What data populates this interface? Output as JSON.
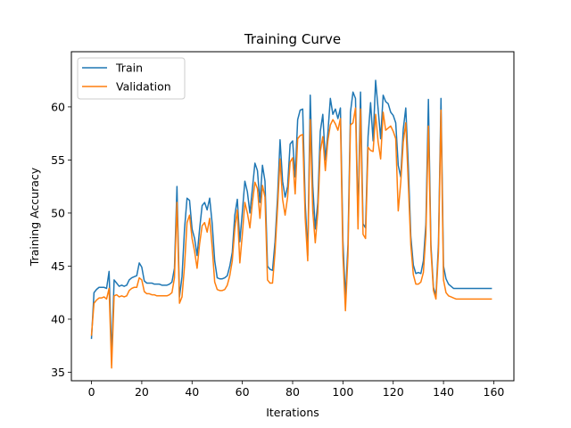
{
  "chart_data": {
    "type": "line",
    "title": "Training Curve",
    "xlabel": "Iterations",
    "ylabel": "Training Accuracy",
    "xlim": [
      -8,
      168
    ],
    "ylim": [
      34.2,
      65.2
    ],
    "xticks": [
      0,
      20,
      40,
      60,
      80,
      100,
      120,
      140,
      160
    ],
    "yticks": [
      35,
      40,
      45,
      50,
      55,
      60
    ],
    "grid": false,
    "legend_position": "top-left",
    "series": [
      {
        "name": "Train",
        "color": "#1f77b4",
        "x": [
          0,
          1,
          2,
          3,
          4,
          5,
          6,
          7,
          8,
          9,
          10,
          11,
          12,
          13,
          14,
          15,
          16,
          17,
          18,
          19,
          20,
          21,
          22,
          23,
          24,
          25,
          26,
          27,
          28,
          29,
          30,
          31,
          32,
          33,
          34,
          35,
          36,
          37,
          38,
          39,
          40,
          41,
          42,
          43,
          44,
          45,
          46,
          47,
          48,
          49,
          50,
          51,
          52,
          53,
          54,
          55,
          56,
          57,
          58,
          59,
          60,
          61,
          62,
          63,
          64,
          65,
          66,
          67,
          68,
          69,
          70,
          71,
          72,
          73,
          74,
          75,
          76,
          77,
          78,
          79,
          80,
          81,
          82,
          83,
          84,
          85,
          86,
          87,
          88,
          89,
          90,
          91,
          92,
          93,
          94,
          95,
          96,
          97,
          98,
          99,
          100,
          101,
          102,
          103,
          104,
          105,
          106,
          107,
          108,
          109,
          110,
          111,
          112,
          113,
          114,
          115,
          116,
          117,
          118,
          119,
          120,
          121,
          122,
          123,
          124,
          125,
          126,
          127,
          128,
          129,
          130,
          131,
          132,
          133,
          134,
          135,
          136,
          137,
          138,
          139,
          140,
          141,
          142,
          143,
          144,
          145,
          146,
          147,
          148,
          149,
          150,
          151,
          152,
          153,
          154,
          155,
          156,
          157,
          158,
          159
        ],
        "y": [
          38.2,
          42.5,
          42.8,
          43.0,
          43.0,
          43.0,
          42.9,
          44.5,
          36.5,
          43.7,
          43.4,
          43.1,
          43.2,
          43.1,
          43.2,
          43.7,
          43.9,
          44.0,
          44.1,
          45.3,
          44.9,
          43.6,
          43.4,
          43.4,
          43.4,
          43.3,
          43.3,
          43.3,
          43.2,
          43.2,
          43.2,
          43.3,
          43.5,
          44.8,
          52.5,
          42.1,
          44.0,
          48.5,
          51.4,
          51.2,
          48.5,
          47.6,
          46.0,
          48.5,
          50.7,
          51.0,
          50.3,
          51.4,
          49.0,
          45.5,
          43.9,
          43.8,
          43.8,
          43.9,
          44.1,
          45.0,
          46.3,
          49.8,
          51.3,
          47.3,
          50.1,
          53.0,
          52.0,
          50.0,
          52.3,
          54.7,
          54.0,
          51.0,
          54.5,
          53.0,
          45.0,
          44.7,
          44.6,
          47.3,
          51.5,
          56.9,
          53.0,
          51.5,
          52.5,
          56.5,
          56.8,
          53.4,
          58.8,
          59.7,
          59.8,
          51.0,
          46.0,
          61.1,
          52.6,
          48.5,
          51.0,
          57.7,
          59.3,
          55.0,
          57.5,
          60.8,
          59.3,
          59.8,
          58.9,
          59.9,
          47.4,
          42.0,
          47.0,
          59.5,
          61.4,
          60.8,
          49.5,
          61.4,
          49.0,
          48.6,
          57.2,
          60.4,
          56.8,
          62.5,
          59.8,
          57.0,
          61.1,
          60.5,
          60.3,
          59.5,
          59.2,
          58.5,
          54.5,
          53.4,
          57.9,
          59.9,
          54.5,
          47.8,
          45.1,
          44.3,
          44.4,
          44.3,
          45.5,
          49.0,
          60.7,
          47.0,
          43.0,
          42.2,
          47.1,
          60.8,
          45.0,
          43.8,
          43.3,
          43.1,
          42.9,
          42.9,
          42.9,
          42.9,
          42.9,
          42.9,
          42.9,
          42.9,
          42.9,
          42.9,
          42.9,
          42.9,
          42.9,
          42.9,
          42.9,
          42.9
        ]
      },
      {
        "name": "Validation",
        "color": "#ff7f0e",
        "x": [
          0,
          1,
          2,
          3,
          4,
          5,
          6,
          7,
          8,
          9,
          10,
          11,
          12,
          13,
          14,
          15,
          16,
          17,
          18,
          19,
          20,
          21,
          22,
          23,
          24,
          25,
          26,
          27,
          28,
          29,
          30,
          31,
          32,
          33,
          34,
          35,
          36,
          37,
          38,
          39,
          40,
          41,
          42,
          43,
          44,
          45,
          46,
          47,
          48,
          49,
          50,
          51,
          52,
          53,
          54,
          55,
          56,
          57,
          58,
          59,
          60,
          61,
          62,
          63,
          64,
          65,
          66,
          67,
          68,
          69,
          70,
          71,
          72,
          73,
          74,
          75,
          76,
          77,
          78,
          79,
          80,
          81,
          82,
          83,
          84,
          85,
          86,
          87,
          88,
          89,
          90,
          91,
          92,
          93,
          94,
          95,
          96,
          97,
          98,
          99,
          100,
          101,
          102,
          103,
          104,
          105,
          106,
          107,
          108,
          109,
          110,
          111,
          112,
          113,
          114,
          115,
          116,
          117,
          118,
          119,
          120,
          121,
          122,
          123,
          124,
          125,
          126,
          127,
          128,
          129,
          130,
          131,
          132,
          133,
          134,
          135,
          136,
          137,
          138,
          139,
          140,
          141,
          142,
          143,
          144,
          145,
          146,
          147,
          148,
          149,
          150,
          151,
          152,
          153,
          154,
          155,
          156,
          157,
          158,
          159
        ],
        "y": [
          38.5,
          41.5,
          41.8,
          42.0,
          42.0,
          42.1,
          41.9,
          42.9,
          35.4,
          42.2,
          42.3,
          42.1,
          42.2,
          42.1,
          42.2,
          42.7,
          42.9,
          43.0,
          43.0,
          43.9,
          43.7,
          42.6,
          42.4,
          42.4,
          42.3,
          42.3,
          42.2,
          42.2,
          42.2,
          42.2,
          42.2,
          42.3,
          42.5,
          43.9,
          51.0,
          41.5,
          42.1,
          45.0,
          49.1,
          49.8,
          47.6,
          46.4,
          44.8,
          47.1,
          48.8,
          49.1,
          48.2,
          49.5,
          46.8,
          43.5,
          42.8,
          42.7,
          42.7,
          42.8,
          43.2,
          44.1,
          45.5,
          48.5,
          50.3,
          45.3,
          48.0,
          51.0,
          50.0,
          48.6,
          51.0,
          52.9,
          52.3,
          49.5,
          52.6,
          51.5,
          43.7,
          43.4,
          43.4,
          46.3,
          50.5,
          55.1,
          51.3,
          49.8,
          51.5,
          54.8,
          55.2,
          51.8,
          57.0,
          57.3,
          57.4,
          49.5,
          45.5,
          58.8,
          50.2,
          47.2,
          50.0,
          55.8,
          57.2,
          54.0,
          56.8,
          58.3,
          58.8,
          58.4,
          57.8,
          58.9,
          46.0,
          40.8,
          46.0,
          58.3,
          58.5,
          59.9,
          48.5,
          59.8,
          48.0,
          47.6,
          56.2,
          55.9,
          55.8,
          59.3,
          56.7,
          55.1,
          59.5,
          57.8,
          58.0,
          58.2,
          57.7,
          57.0,
          50.2,
          52.9,
          56.7,
          58.5,
          52.8,
          47.0,
          44.2,
          43.3,
          43.3,
          43.5,
          44.4,
          48.0,
          58.2,
          46.5,
          42.7,
          41.9,
          46.3,
          59.7,
          43.7,
          42.5,
          42.2,
          42.1,
          42.0,
          41.9,
          41.9,
          41.9,
          41.9,
          41.9,
          41.9,
          41.9,
          41.9,
          41.9,
          41.9,
          41.9,
          41.9,
          41.9,
          41.9,
          41.9
        ]
      }
    ]
  }
}
